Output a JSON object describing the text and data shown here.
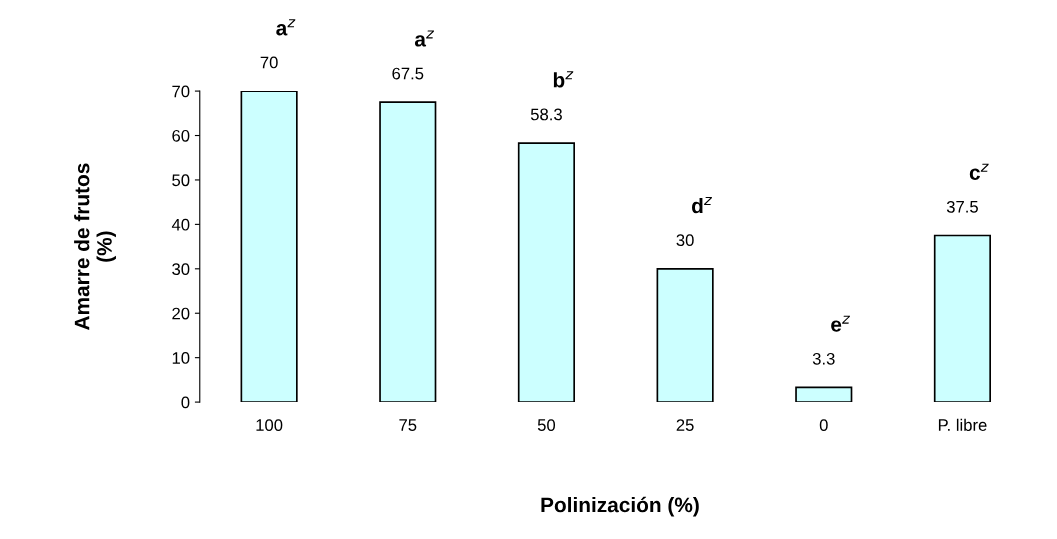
{
  "chart_data": {
    "type": "bar",
    "xlabel": "Polinización (%)",
    "ylabel": "Amarre de frutos\n(%)",
    "categories": [
      "100",
      "75",
      "50",
      "25",
      "0",
      "P. libre"
    ],
    "values": [
      70,
      67.5,
      58.3,
      30,
      3.3,
      37.5
    ],
    "color": "#ccffff",
    "data_labels": true,
    "grid": false,
    "ylim": [
      0,
      70
    ],
    "yticks": [
      0,
      10,
      20,
      30,
      40,
      50,
      60,
      70
    ],
    "annotations": [
      "a$^{z}$",
      "a$^{z}$",
      "b$^{z}$",
      "d$^{z}$",
      "e$^{z}$",
      "c$^{z}$"
    ]
  }
}
